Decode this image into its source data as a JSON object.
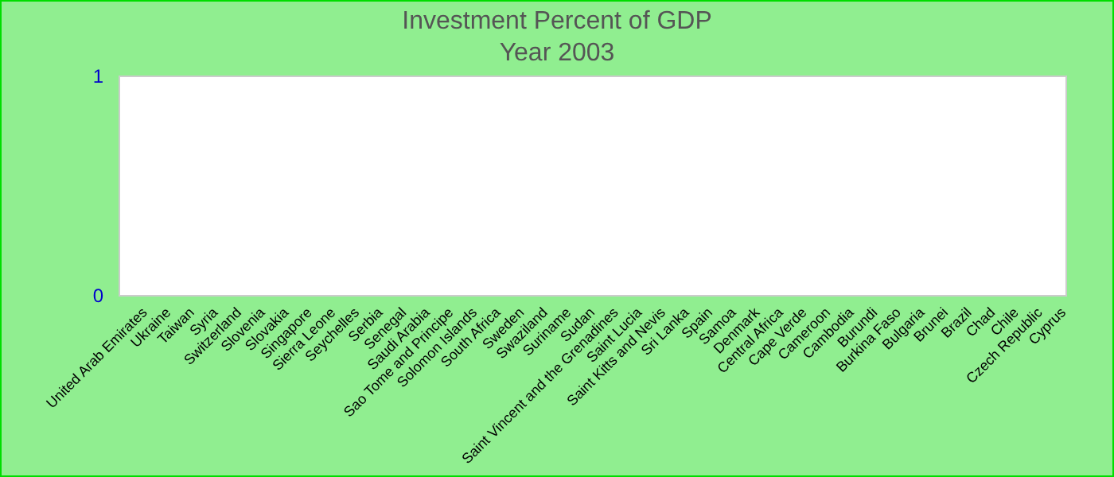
{
  "chart_data": {
    "type": "bar",
    "title": "Investment  Percent of GDP",
    "subtitle": "Year 2003",
    "categories": [
      "United Arab Emirates",
      "Ukraine",
      "Taiwan",
      "Syria",
      "Switzerland",
      "Slovenia",
      "Slovakia",
      "Singapore",
      "Sierra Leone",
      "Seychelles",
      "Serbia",
      "Senegal",
      "Saudi Arabia",
      "Sao Tome and Principe",
      "Solomon Islands",
      "South Africa",
      "Sweden",
      "Swaziland",
      "Suriname",
      "Sudan",
      "Saint Vincent and the Grenadines",
      "Saint Lucia",
      "Saint Kitts and Nevis",
      "Sri Lanka",
      "Spain",
      "Samoa",
      "Denmark",
      "Central Africa",
      "Cape Verde",
      "Cameroon",
      "Cambodia",
      "Burundi",
      "Burkina Faso",
      "Bulgaria",
      "Brunei",
      "Brazil",
      "Chad",
      "Chile",
      "Czech Republic",
      "Cyprus"
    ],
    "values": [
      0,
      0,
      0,
      0,
      0,
      0,
      0,
      0,
      0,
      0,
      0,
      0,
      0,
      0,
      0,
      0,
      0,
      0,
      0,
      0,
      0,
      0,
      0,
      0,
      0,
      0,
      0,
      0,
      0,
      0,
      0,
      0,
      0,
      0,
      0,
      0,
      0,
      0,
      0,
      0
    ],
    "ylim": [
      0,
      1
    ],
    "yticks": [
      0,
      1
    ],
    "grid": false
  }
}
